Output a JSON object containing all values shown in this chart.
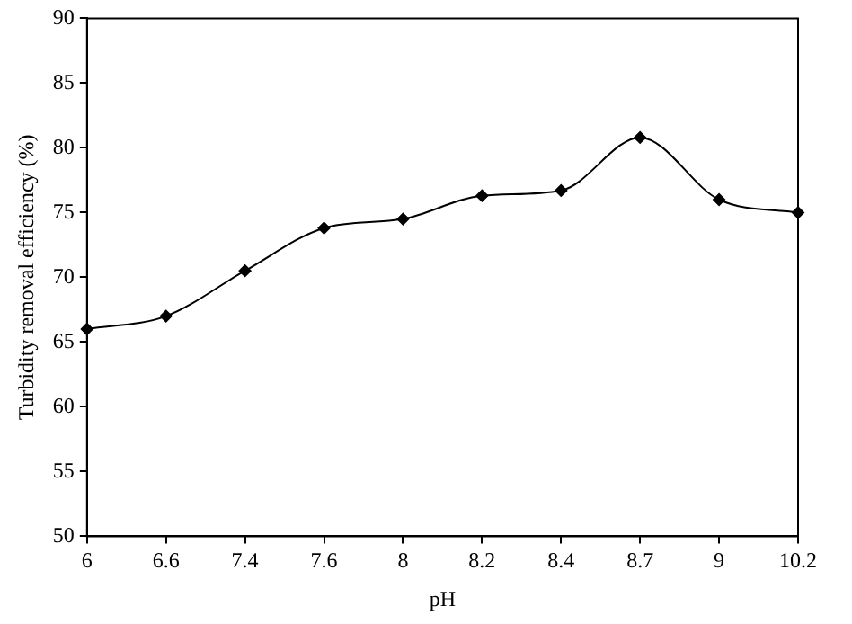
{
  "chart_data": {
    "type": "line",
    "xlabel": "pH",
    "ylabel": "Turbidity removal efficiency (%)",
    "categories": [
      "6",
      "6.6",
      "7.4",
      "7.6",
      "8",
      "8.2",
      "8.4",
      "8.7",
      "9",
      "10.2"
    ],
    "series": [
      {
        "color": "#000000",
        "values": [
          66,
          67,
          70.5,
          73.8,
          74.5,
          76.3,
          76.7,
          80.8,
          76,
          75
        ]
      }
    ],
    "ylim": [
      50,
      90
    ],
    "yticks": [
      50,
      55,
      60,
      65,
      70,
      75,
      80,
      85,
      90
    ],
    "grid": false,
    "legend": false,
    "marker": "diamond",
    "line_style": "solid"
  }
}
